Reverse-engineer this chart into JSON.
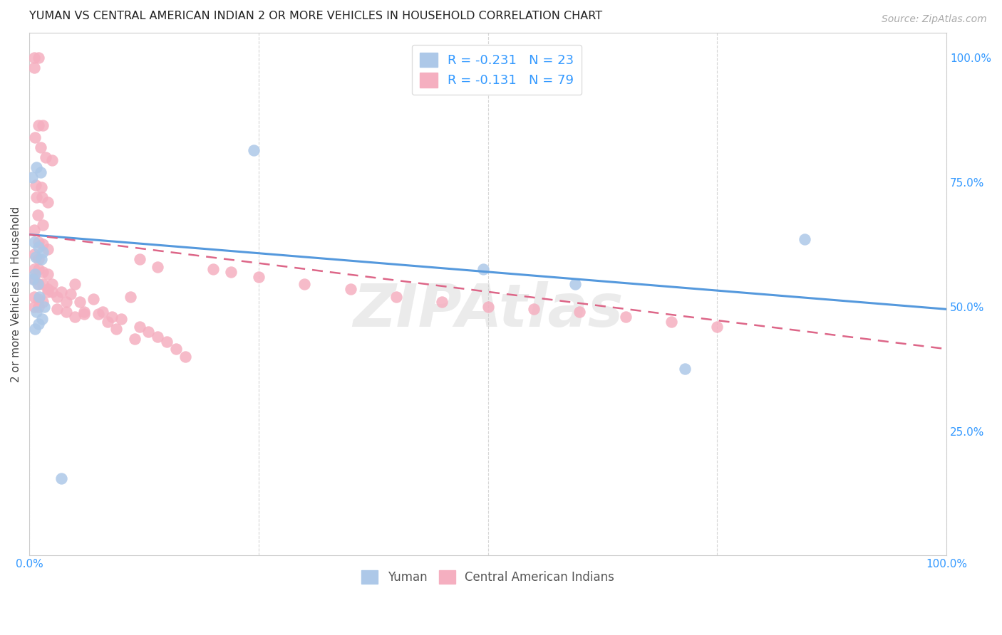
{
  "title": "YUMAN VS CENTRAL AMERICAN INDIAN 2 OR MORE VEHICLES IN HOUSEHOLD CORRELATION CHART",
  "source": "Source: ZipAtlas.com",
  "ylabel": "2 or more Vehicles in Household",
  "xlim": [
    0.0,
    1.0
  ],
  "ylim": [
    0.0,
    1.05
  ],
  "legend_label1": "R = -0.231   N = 23",
  "legend_label2": "R = -0.131   N = 79",
  "legend_bottom_label1": "Yuman",
  "legend_bottom_label2": "Central American Indians",
  "color_yuman": "#adc8e8",
  "color_ca": "#f5afc0",
  "line_color_yuman": "#5599dd",
  "line_color_ca": "#dd6688",
  "watermark": "ZIPAtlas",
  "yuman_x": [
    0.003,
    0.008,
    0.012,
    0.005,
    0.01,
    0.015,
    0.007,
    0.013,
    0.006,
    0.009,
    0.004,
    0.011,
    0.016,
    0.008,
    0.014,
    0.01,
    0.006,
    0.245,
    0.495,
    0.595,
    0.035,
    0.715,
    0.845
  ],
  "yuman_y": [
    0.76,
    0.78,
    0.77,
    0.63,
    0.62,
    0.61,
    0.6,
    0.595,
    0.565,
    0.545,
    0.555,
    0.52,
    0.5,
    0.49,
    0.475,
    0.465,
    0.455,
    0.815,
    0.575,
    0.545,
    0.155,
    0.375,
    0.635
  ],
  "ca_x": [
    0.005,
    0.01,
    0.005,
    0.01,
    0.015,
    0.006,
    0.012,
    0.018,
    0.025,
    0.007,
    0.013,
    0.008,
    0.014,
    0.02,
    0.009,
    0.015,
    0.005,
    0.01,
    0.015,
    0.02,
    0.005,
    0.01,
    0.005,
    0.01,
    0.015,
    0.005,
    0.01,
    0.015,
    0.02,
    0.025,
    0.005,
    0.01,
    0.015,
    0.005,
    0.01,
    0.03,
    0.04,
    0.05,
    0.06,
    0.07,
    0.08,
    0.09,
    0.1,
    0.11,
    0.12,
    0.13,
    0.14,
    0.15,
    0.16,
    0.17,
    0.02,
    0.03,
    0.04,
    0.05,
    0.06,
    0.12,
    0.14,
    0.2,
    0.22,
    0.25,
    0.3,
    0.35,
    0.4,
    0.45,
    0.5,
    0.55,
    0.6,
    0.65,
    0.7,
    0.75,
    0.02,
    0.025,
    0.035,
    0.045,
    0.055,
    0.075,
    0.085,
    0.095,
    0.115
  ],
  "ca_y": [
    1.0,
    1.0,
    0.98,
    0.865,
    0.865,
    0.84,
    0.82,
    0.8,
    0.795,
    0.745,
    0.74,
    0.72,
    0.72,
    0.71,
    0.685,
    0.665,
    0.655,
    0.63,
    0.625,
    0.615,
    0.605,
    0.595,
    0.575,
    0.575,
    0.57,
    0.555,
    0.545,
    0.545,
    0.535,
    0.53,
    0.52,
    0.515,
    0.51,
    0.5,
    0.5,
    0.495,
    0.49,
    0.48,
    0.485,
    0.515,
    0.49,
    0.48,
    0.475,
    0.52,
    0.46,
    0.45,
    0.44,
    0.43,
    0.415,
    0.4,
    0.53,
    0.52,
    0.51,
    0.545,
    0.49,
    0.595,
    0.58,
    0.575,
    0.57,
    0.56,
    0.545,
    0.535,
    0.52,
    0.51,
    0.5,
    0.495,
    0.49,
    0.48,
    0.47,
    0.46,
    0.565,
    0.545,
    0.53,
    0.525,
    0.51,
    0.485,
    0.47,
    0.455,
    0.435
  ]
}
